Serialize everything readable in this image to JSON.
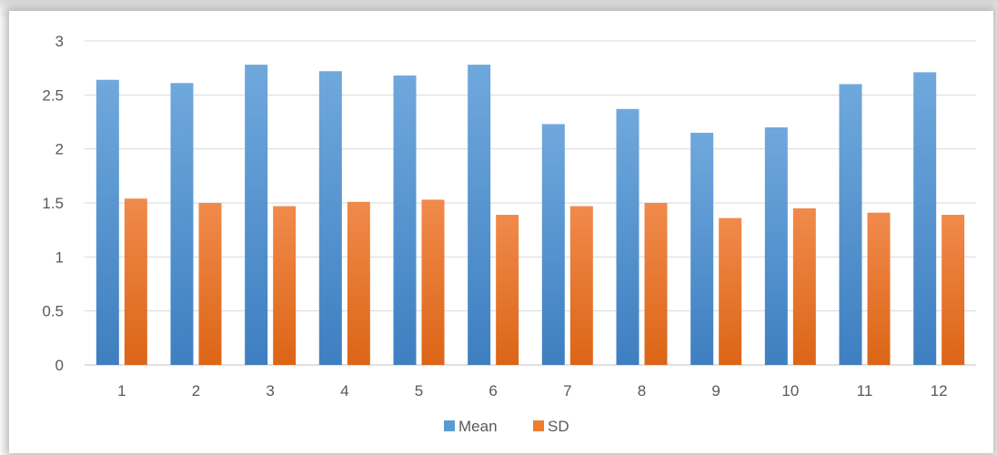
{
  "chart_data": {
    "type": "bar",
    "categories": [
      "1",
      "2",
      "3",
      "4",
      "5",
      "6",
      "7",
      "8",
      "9",
      "10",
      "11",
      "12"
    ],
    "series": [
      {
        "name": "Mean",
        "color": "#5B9BD5",
        "values": [
          2.64,
          2.61,
          2.78,
          2.72,
          2.68,
          2.78,
          2.23,
          2.37,
          2.15,
          2.2,
          2.6,
          2.71
        ]
      },
      {
        "name": "SD",
        "color": "#ED7D31",
        "values": [
          1.54,
          1.5,
          1.47,
          1.51,
          1.53,
          1.39,
          1.47,
          1.5,
          1.36,
          1.45,
          1.41,
          1.39
        ]
      }
    ],
    "ylim": [
      0,
      3
    ],
    "yticks": [
      "0",
      "0.5",
      "1",
      "1.5",
      "2",
      "2.5",
      "3"
    ],
    "grid": true,
    "legend_position": "bottom"
  }
}
